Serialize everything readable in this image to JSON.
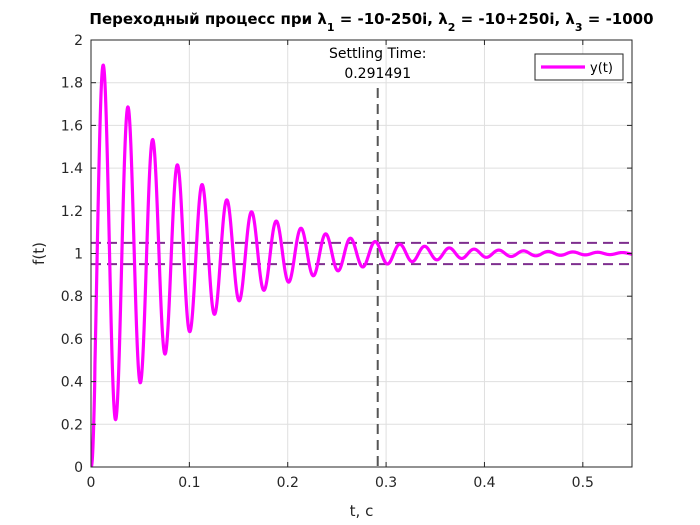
{
  "chart_data": {
    "type": "line",
    "title": "Переходный процесс при λ₁ = -10-250i, λ₂ = -10+250i, λ₃ = -1000",
    "title_parts": [
      {
        "text": "Переходный процесс при λ",
        "sub": false
      },
      {
        "text": "1",
        "sub": true
      },
      {
        "text": " = -10-250i, λ",
        "sub": false
      },
      {
        "text": "2",
        "sub": true
      },
      {
        "text": " = -10+250i, λ",
        "sub": false
      },
      {
        "text": "3",
        "sub": true
      },
      {
        "text": " = -1000",
        "sub": false
      }
    ],
    "xlabel": "t, c",
    "ylabel": "f(t)",
    "xlim": [
      0,
      0.55
    ],
    "ylim": [
      0,
      2
    ],
    "xticks": [
      0,
      0.1,
      0.2,
      0.3,
      0.4,
      0.5
    ],
    "xtick_labels": [
      "0",
      "0.1",
      "0.2",
      "0.3",
      "0.4",
      "0.5"
    ],
    "yticks": [
      0,
      0.2,
      0.4,
      0.6,
      0.8,
      1,
      1.2,
      1.4,
      1.6,
      1.8,
      2
    ],
    "ytick_labels": [
      "0",
      "0.2",
      "0.4",
      "0.6",
      "0.8",
      "1",
      "1.2",
      "1.4",
      "1.6",
      "1.8",
      "2"
    ],
    "grid": true,
    "legend_position": "top-right",
    "series": [
      {
        "name": "y(t)",
        "color": "#ff00ff",
        "model": {
          "steady": 1,
          "decay_rate": 10,
          "omega": 250,
          "fast_pole": 1000
        },
        "extrema": [
          {
            "t": 0.0126,
            "y": 1.85
          },
          {
            "t": 0.0252,
            "y": 0.25
          },
          {
            "t": 0.0377,
            "y": 1.66
          },
          {
            "t": 0.0503,
            "y": 0.42
          },
          {
            "t": 0.0629,
            "y": 1.51
          },
          {
            "t": 0.088,
            "y": 1.4
          },
          {
            "t": 0.1131,
            "y": 1.31
          },
          {
            "t": 0.1383,
            "y": 1.24
          }
        ]
      }
    ],
    "reference_lines": [
      {
        "orientation": "horizontal",
        "y": 1.05,
        "color": "#7e2f8e",
        "style": "dashed"
      },
      {
        "orientation": "horizontal",
        "y": 0.95,
        "color": "#7e2f8e",
        "style": "dashed"
      },
      {
        "orientation": "vertical",
        "x": 0.291491,
        "color": "#555555",
        "style": "dashed"
      }
    ],
    "annotations": [
      {
        "label": "Settling Time:",
        "value": "0.291491",
        "x": 0.291491
      }
    ]
  }
}
